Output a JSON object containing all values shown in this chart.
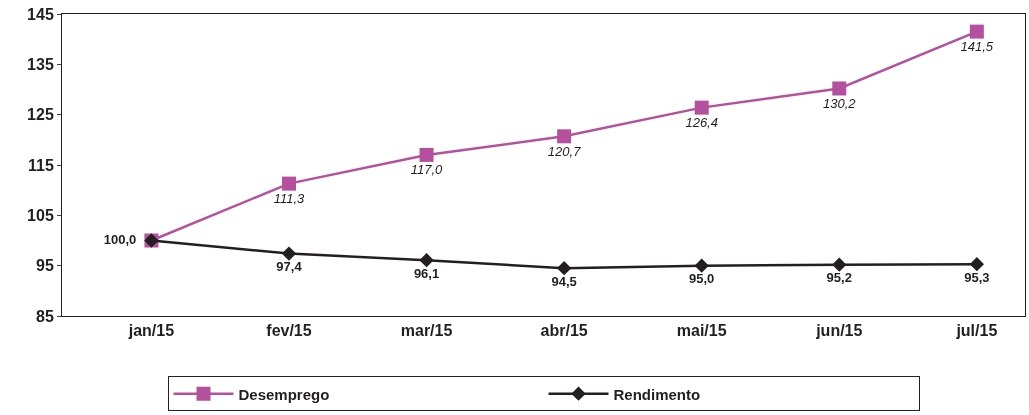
{
  "chart_data": {
    "type": "line",
    "categories": [
      "jan/15",
      "fev/15",
      "mar/15",
      "abr/15",
      "mai/15",
      "jun/15",
      "jul/15"
    ],
    "series": [
      {
        "name": "Desemprego",
        "color": "#b5509f",
        "marker": "square",
        "values": [
          100.0,
          111.3,
          117.0,
          120.7,
          126.4,
          130.2,
          141.5
        ],
        "value_labels": [
          null,
          "111,3",
          "117,0",
          "120,7",
          "126,4",
          "130,2",
          "141,5"
        ]
      },
      {
        "name": "Rendimento",
        "color": "#231f20",
        "marker": "diamond",
        "values": [
          100.0,
          97.4,
          96.1,
          94.5,
          95.0,
          95.2,
          95.3
        ],
        "value_labels": [
          "100,0",
          "97,4",
          "96,1",
          "94,5",
          "95,0",
          "95,2",
          "95,3"
        ]
      }
    ],
    "ylim": [
      85,
      145
    ],
    "yticks": [
      85,
      95,
      105,
      115,
      125,
      135,
      145
    ],
    "legend": "bottom",
    "line_style": "solid"
  }
}
